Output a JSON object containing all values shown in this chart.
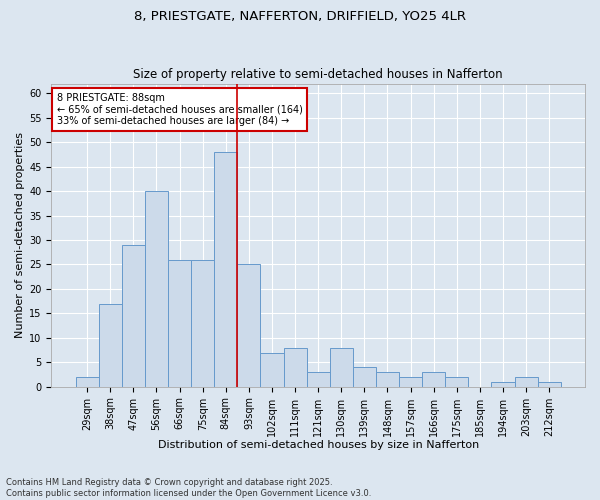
{
  "title_line1": "8, PRIESTGATE, NAFFERTON, DRIFFIELD, YO25 4LR",
  "title_line2": "Size of property relative to semi-detached houses in Nafferton",
  "xlabel": "Distribution of semi-detached houses by size in Nafferton",
  "ylabel": "Number of semi-detached properties",
  "footnote": "Contains HM Land Registry data © Crown copyright and database right 2025.\nContains public sector information licensed under the Open Government Licence v3.0.",
  "categories": [
    "29sqm",
    "38sqm",
    "47sqm",
    "56sqm",
    "66sqm",
    "75sqm",
    "84sqm",
    "93sqm",
    "102sqm",
    "111sqm",
    "121sqm",
    "130sqm",
    "139sqm",
    "148sqm",
    "157sqm",
    "166sqm",
    "175sqm",
    "185sqm",
    "194sqm",
    "203sqm",
    "212sqm"
  ],
  "bar_values": [
    2,
    17,
    29,
    40,
    26,
    26,
    48,
    25,
    7,
    8,
    3,
    8,
    4,
    3,
    2,
    3,
    2,
    0,
    1,
    2,
    1
  ],
  "bar_color": "#ccdaea",
  "bar_edge_color": "#6699cc",
  "vline_x": 6.5,
  "vline_color": "#cc0000",
  "annotation_text": "8 PRIESTGATE: 88sqm\n← 65% of semi-detached houses are smaller (164)\n33% of semi-detached houses are larger (84) →",
  "annotation_box_color": "#cc0000",
  "ylim": [
    0,
    62
  ],
  "yticks": [
    0,
    5,
    10,
    15,
    20,
    25,
    30,
    35,
    40,
    45,
    50,
    55,
    60
  ],
  "background_color": "#dce6f0",
  "grid_color": "#ffffff",
  "title_fontsize": 9.5,
  "subtitle_fontsize": 8.5,
  "axis_label_fontsize": 8,
  "tick_fontsize": 7,
  "footnote_fontsize": 6,
  "annotation_fontsize": 7
}
